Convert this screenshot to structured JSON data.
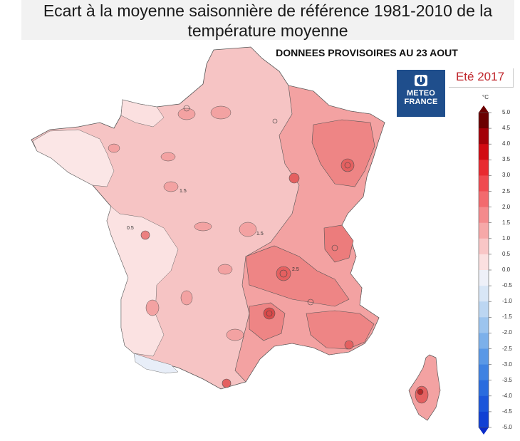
{
  "title": {
    "line1": "Ecart à la moyenne saisonnière de référence 1981-2010 de la",
    "line2": "température moyenne"
  },
  "subtitle": "DONNEES PROVISOIRES AU 23 AOUT",
  "logo": {
    "line1": "METEO",
    "line2": "FRANCE",
    "color": "#1f4e8c"
  },
  "season": "Eté 2017",
  "legend": {
    "unit": "°C",
    "ticks": [
      "5.0",
      "4.5",
      "4.0",
      "3.5",
      "3.0",
      "2.5",
      "2.0",
      "1.5",
      "1.0",
      "0.5",
      "0.0",
      "-0.5",
      "-1.0",
      "-1.5",
      "-2.0",
      "-2.5",
      "-3.0",
      "-3.5",
      "-4.0",
      "-4.5",
      "-5.0"
    ],
    "colors": [
      "#6b0000",
      "#a30008",
      "#d10a12",
      "#e82a30",
      "#ef4a50",
      "#f26a6e",
      "#f48a8c",
      "#f6a8a8",
      "#f9c6c6",
      "#fbe0e0",
      "#eef0f8",
      "#d8e6f6",
      "#bcd6f2",
      "#9cc4ee",
      "#7cb0ea",
      "#5a98e6",
      "#3f82e2",
      "#2a6cde",
      "#1c56da",
      "#1040d4",
      "#0a2cc8"
    ]
  },
  "map_colors": {
    "france_base": "#f6c4c4",
    "west_pale": "#fbe6e6",
    "anomaly_1_5": "#f3a2a2",
    "anomaly_2_0": "#ee8585",
    "anomaly_2_5": "#e46060",
    "southwest_cool": "#eef2f8"
  },
  "map_labels": [
    {
      "text": "1.5",
      "name": "contour-label-1-5"
    },
    {
      "text": "0.5",
      "name": "contour-label-0-5"
    },
    {
      "text": "1.5",
      "name": "contour-label-1-5-b"
    },
    {
      "text": "2.5",
      "name": "contour-label-2-5"
    }
  ]
}
